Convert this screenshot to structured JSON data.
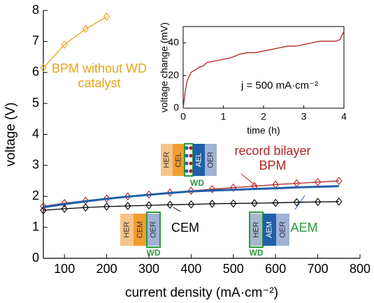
{
  "chart_data": [
    {
      "type": "line",
      "x_label": "current density (mA·cm⁻²)",
      "y_label": "voltage (V)",
      "x": [
        50,
        100,
        150,
        200,
        250,
        300,
        350,
        400,
        450,
        500,
        550,
        600,
        650,
        700,
        750
      ],
      "series": [
        {
          "name": "BPM without WD catalyst",
          "color": "#e8a317",
          "marker": "diamond",
          "values": [
            6.15,
            6.9,
            7.4,
            7.8,
            null,
            null,
            null,
            null,
            null,
            null,
            null,
            null,
            null,
            null,
            null
          ]
        },
        {
          "name": "record bilayer BPM",
          "color": "#b22222",
          "marker": "diamond",
          "values": [
            1.68,
            1.78,
            1.86,
            1.93,
            2.0,
            2.06,
            2.12,
            2.18,
            2.23,
            2.28,
            2.33,
            2.38,
            2.42,
            2.46,
            2.5
          ]
        },
        {
          "name": "AEM",
          "color": "#1f5fa8",
          "label_color": "#2a9a3a",
          "marker": null,
          "values": [
            1.65,
            1.75,
            1.84,
            1.92,
            1.99,
            2.05,
            2.11,
            2.16,
            2.19,
            2.21,
            2.24,
            2.26,
            2.29,
            2.31,
            2.33
          ]
        },
        {
          "name": "CEM",
          "color": "#000000",
          "marker": "diamond",
          "values": [
            1.55,
            1.6,
            1.64,
            1.67,
            1.69,
            1.71,
            1.73,
            1.74,
            1.76,
            1.77,
            1.78,
            1.79,
            1.81,
            1.82,
            1.83
          ]
        }
      ],
      "xlim": [
        50,
        800
      ],
      "xticks": [
        100,
        200,
        300,
        400,
        500,
        600,
        700,
        800
      ],
      "ylim": [
        0,
        8
      ],
      "yticks": [
        0,
        1,
        2,
        3,
        4,
        5,
        6,
        7,
        8
      ]
    },
    {
      "type": "line",
      "x_label": "time (h)",
      "y_label": "voltage change (mV)",
      "annotation": "j = 500 mA·cm⁻²",
      "x": [
        0,
        0.05,
        0.1,
        0.2,
        0.4,
        0.5,
        0.6,
        0.8,
        1.0,
        1.2,
        1.4,
        1.6,
        1.8,
        2.0,
        2.4,
        2.6,
        2.8,
        3.0,
        3.2,
        3.4,
        3.6,
        3.8,
        3.9,
        4.0
      ],
      "series": [
        {
          "color": "#b22222",
          "marker": null,
          "values": [
            0,
            10,
            17,
            22,
            25,
            26,
            28,
            29,
            30,
            31,
            33,
            34,
            34,
            35,
            37,
            38,
            38,
            39,
            40,
            41,
            41,
            41,
            42,
            47
          ]
        }
      ],
      "xlim": [
        0,
        4
      ],
      "xticks": [
        0,
        1,
        2,
        3,
        4
      ],
      "ylim": [
        0,
        50
      ],
      "yticks": [
        0,
        20,
        40
      ]
    }
  ],
  "diagrams": [
    {
      "layers": [
        "HER",
        "CEL",
        "AEL",
        "OER"
      ],
      "catalyst": "WD"
    },
    {
      "layers": [
        "HER",
        "CEM",
        "OER"
      ],
      "catalyst": "WD"
    },
    {
      "layers": [
        "HER",
        "AEM",
        "OER"
      ],
      "catalyst": "WD"
    }
  ]
}
